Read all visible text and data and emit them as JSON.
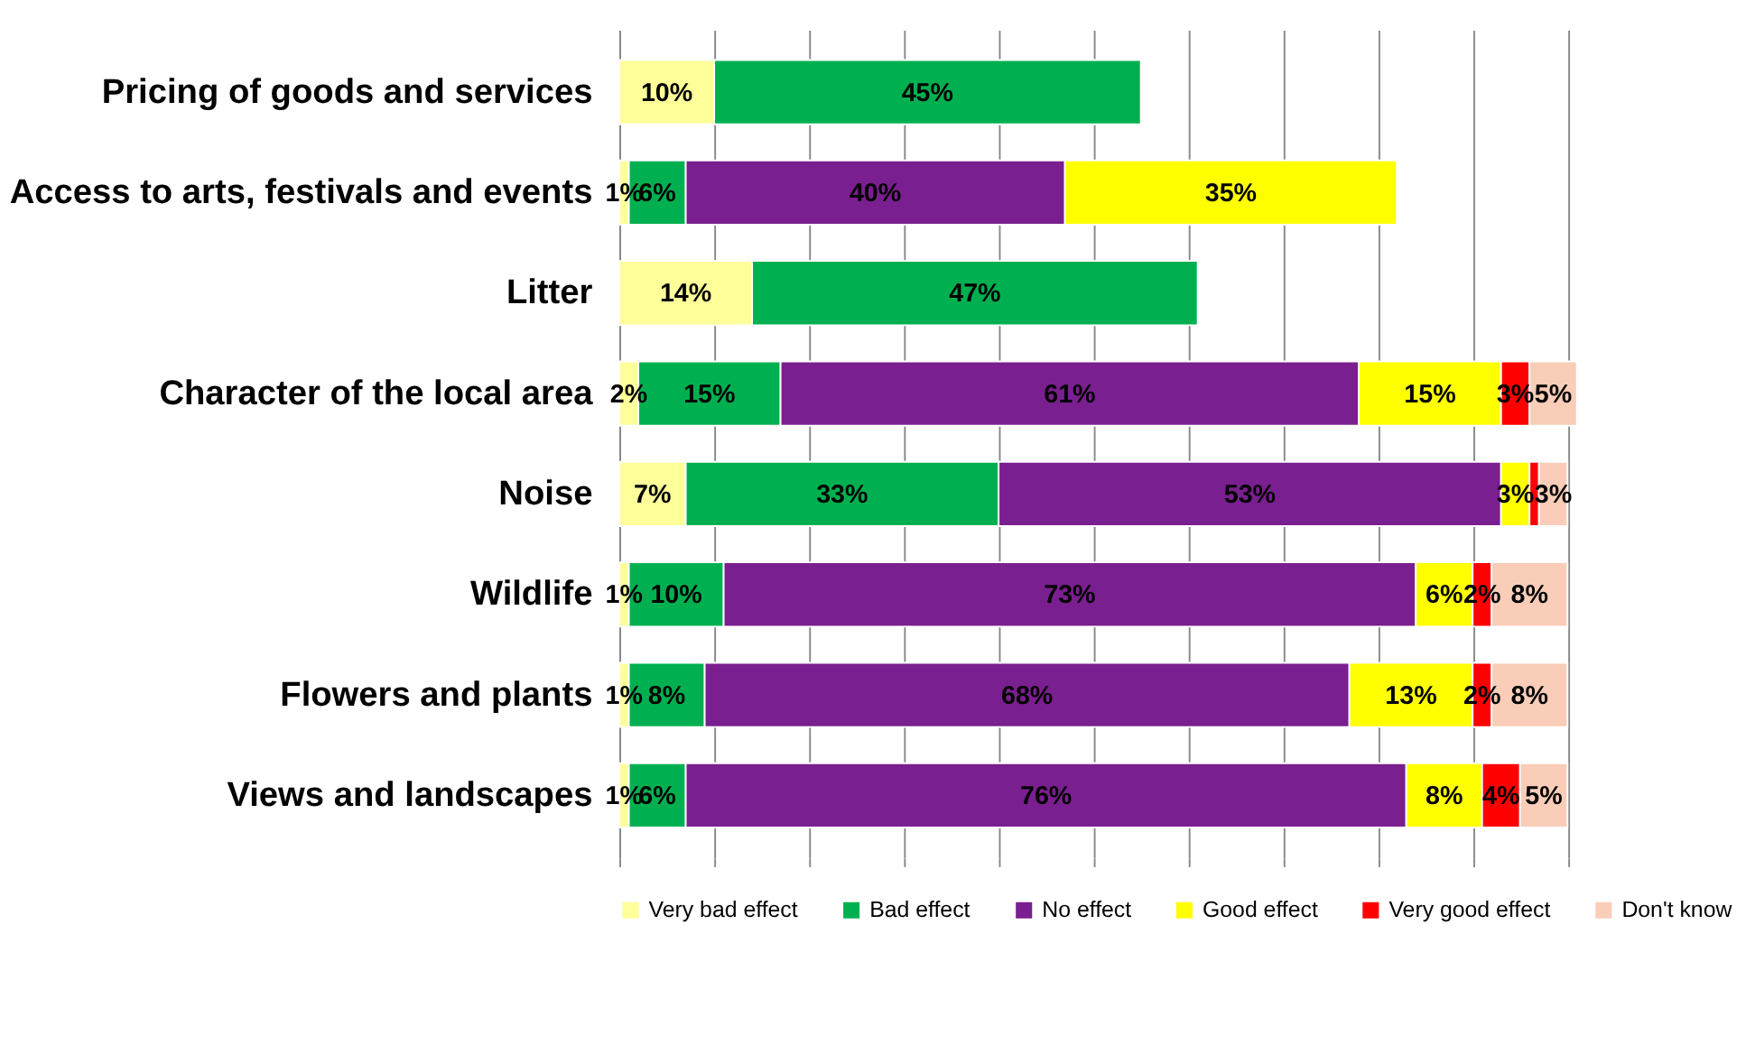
{
  "chart_data": {
    "type": "bar",
    "orientation": "horizontal",
    "stacked": true,
    "categories": [
      "Pricing of goods and services",
      "Access to arts, festivals and events",
      "Litter",
      "Character of the local area",
      "Noise",
      "Wildlife",
      "Flowers and plants",
      "Views and landscapes"
    ],
    "series": [
      {
        "name": "Very bad effect",
        "color": "#ffff99",
        "values": [
          10,
          1,
          14,
          2,
          7,
          1,
          1,
          1
        ],
        "value_labels": [
          "10%",
          "1%",
          "14%",
          "2%",
          "7%",
          "1%",
          "1%",
          "1%"
        ]
      },
      {
        "name": "Bad effect",
        "color": "#00b050",
        "values": [
          45,
          6,
          47,
          15,
          33,
          10,
          8,
          6
        ],
        "value_labels": [
          "45%",
          "6%",
          "47%",
          "15%",
          "33%",
          "10%",
          "8%",
          "6%"
        ]
      },
      {
        "name": "No effect",
        "color": "#7a1f8f",
        "values": [
          null,
          40,
          null,
          61,
          53,
          73,
          68,
          76
        ],
        "value_labels": [
          null,
          "40%",
          null,
          "61%",
          "53%",
          "73%",
          "68%",
          "76%"
        ]
      },
      {
        "name": "Good effect",
        "color": "#ffff00",
        "values": [
          null,
          35,
          null,
          15,
          3,
          6,
          13,
          8
        ],
        "value_labels": [
          null,
          "35%",
          null,
          "15%",
          "3%",
          "6%",
          "13%",
          "8%"
        ]
      },
      {
        "name": "Very good effect",
        "color": "#ff0000",
        "values": [
          null,
          null,
          null,
          3,
          1,
          2,
          2,
          4
        ],
        "value_labels": [
          null,
          null,
          null,
          "3%",
          null,
          "2%",
          "2%",
          "4%"
        ]
      },
      {
        "name": "Don't know",
        "color": "#f9cdb8",
        "values": [
          null,
          null,
          null,
          5,
          3,
          8,
          8,
          5
        ],
        "value_labels": [
          null,
          null,
          null,
          "5%",
          "3%",
          "8%",
          "8%",
          "5%"
        ]
      }
    ],
    "xlim": [
      0,
      101
    ],
    "xticks": [
      {
        "value": 0,
        "label": null
      },
      {
        "value": 10,
        "label": null
      },
      {
        "value": 20,
        "label": null
      },
      {
        "value": 30,
        "label": null
      },
      {
        "value": 40,
        "label": null
      },
      {
        "value": 50,
        "label": null
      },
      {
        "value": 60,
        "label": null
      },
      {
        "value": 70,
        "label": null
      },
      {
        "value": 80,
        "label": null
      },
      {
        "value": 90,
        "label": null
      },
      {
        "value": 100,
        "label": null
      }
    ],
    "tick_labels": "y",
    "grid": "x",
    "legend": "bottom"
  }
}
